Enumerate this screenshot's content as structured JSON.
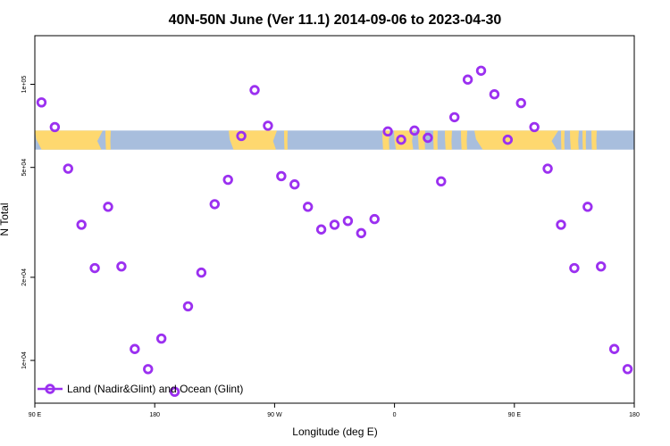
{
  "chart_data": {
    "type": "scatter",
    "title": "40N-50N June (Ver 11.1)   2014-09-06 to 2023-04-30",
    "xlabel": "Longitude (deg E)",
    "ylabel": "N Total",
    "xlim": [
      90,
      540
    ],
    "ylim": [
      7000,
      150000
    ],
    "y_scale": "log",
    "x_ticks": [
      {
        "value": 90,
        "label": "90 E"
      },
      {
        "value": 180,
        "label": "180"
      },
      {
        "value": 270,
        "label": "90 W"
      },
      {
        "value": 360,
        "label": "0"
      },
      {
        "value": 450,
        "label": "90 E"
      },
      {
        "value": 540,
        "label": "180"
      }
    ],
    "y_ticks": [
      {
        "value": 10000,
        "label": "1e+04"
      },
      {
        "value": 20000,
        "label": "2e+04"
      },
      {
        "value": 50000,
        "label": "5e+04"
      },
      {
        "value": 100000,
        "label": "1e+05"
      }
    ],
    "band": {
      "y_from": 58000,
      "y_to": 68000,
      "land_color": "#fed86f",
      "ocean_color": "#a8bedd"
    },
    "legend": {
      "position": "bottom-left",
      "label": "Land (Nadir&Glint) and Ocean (Glint)"
    },
    "series": [
      {
        "name": "Land (Nadir&Glint) and Ocean (Glint)",
        "color": "#9b30f0",
        "x": [
          95,
          105,
          115,
          125,
          135,
          145,
          155,
          165,
          175,
          185,
          195,
          205,
          215,
          225,
          235,
          245,
          255,
          265,
          275,
          285,
          295,
          305,
          315,
          325,
          335,
          345,
          355,
          365,
          375,
          385,
          395,
          405,
          415,
          425,
          435,
          445,
          455,
          465,
          475,
          485,
          495,
          505,
          515,
          525,
          535
        ],
        "y": [
          86000,
          70000,
          49500,
          31000,
          21600,
          36000,
          21900,
          11000,
          9300,
          12000,
          7700,
          15700,
          20800,
          36800,
          45100,
          65000,
          95300,
          70800,
          46500,
          43400,
          36000,
          29800,
          31000,
          32000,
          28900,
          32500,
          67500,
          63000,
          68000,
          64000,
          44500,
          76000,
          104000,
          112000,
          92000,
          63000,
          85500,
          70000,
          49500,
          31000,
          21600,
          36000,
          21900,
          11000,
          9300
        ]
      }
    ]
  }
}
